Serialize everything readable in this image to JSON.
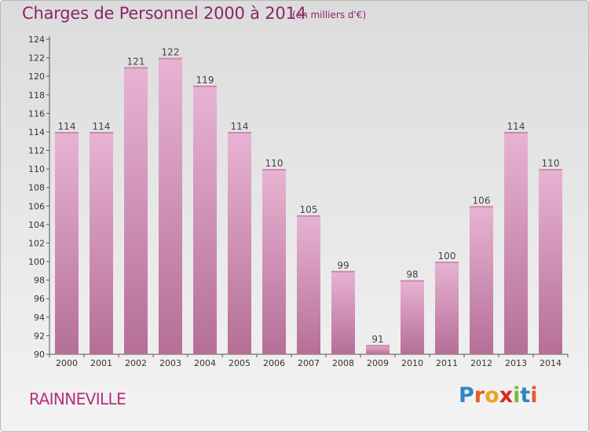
{
  "header": {
    "title": "Charges de Personnel 2000 à 2014",
    "subtitle": "(en milliers d'€)"
  },
  "footer": {
    "commune": "RAINNEVILLE",
    "logo": {
      "text": "Proxiti",
      "letters": [
        {
          "char": "P",
          "color": "#2f86c6"
        },
        {
          "char": "r",
          "color": "#e8592b"
        },
        {
          "char": "o",
          "color": "#f2a21e"
        },
        {
          "char": "x",
          "color": "#d8281e"
        },
        {
          "char": "i",
          "color": "#7ab83a"
        },
        {
          "char": "t",
          "color": "#2f86c6"
        },
        {
          "char": "i",
          "color": "#e8592b"
        }
      ]
    }
  },
  "colors": {
    "bar_light": "#e8b3d3",
    "bar_dark": "#b56f97",
    "title": "#8a2668",
    "commune": "#b8307a"
  },
  "chart_data": {
    "type": "bar",
    "title": "Charges de Personnel 2000 à 2014",
    "subtitle": "(en milliers d'€)",
    "categories": [
      "2000",
      "2001",
      "2002",
      "2003",
      "2004",
      "2005",
      "2006",
      "2007",
      "2008",
      "2009",
      "2010",
      "2011",
      "2012",
      "2013",
      "2014"
    ],
    "values": [
      114,
      114,
      121,
      122,
      119,
      114,
      110,
      105,
      99,
      91,
      98,
      100,
      106,
      114,
      110
    ],
    "ylim": [
      90,
      124
    ],
    "yticks": [
      90,
      92,
      94,
      96,
      98,
      100,
      102,
      104,
      106,
      108,
      110,
      112,
      114,
      116,
      118,
      120,
      122,
      124
    ],
    "grid": false,
    "data_labels": true
  }
}
